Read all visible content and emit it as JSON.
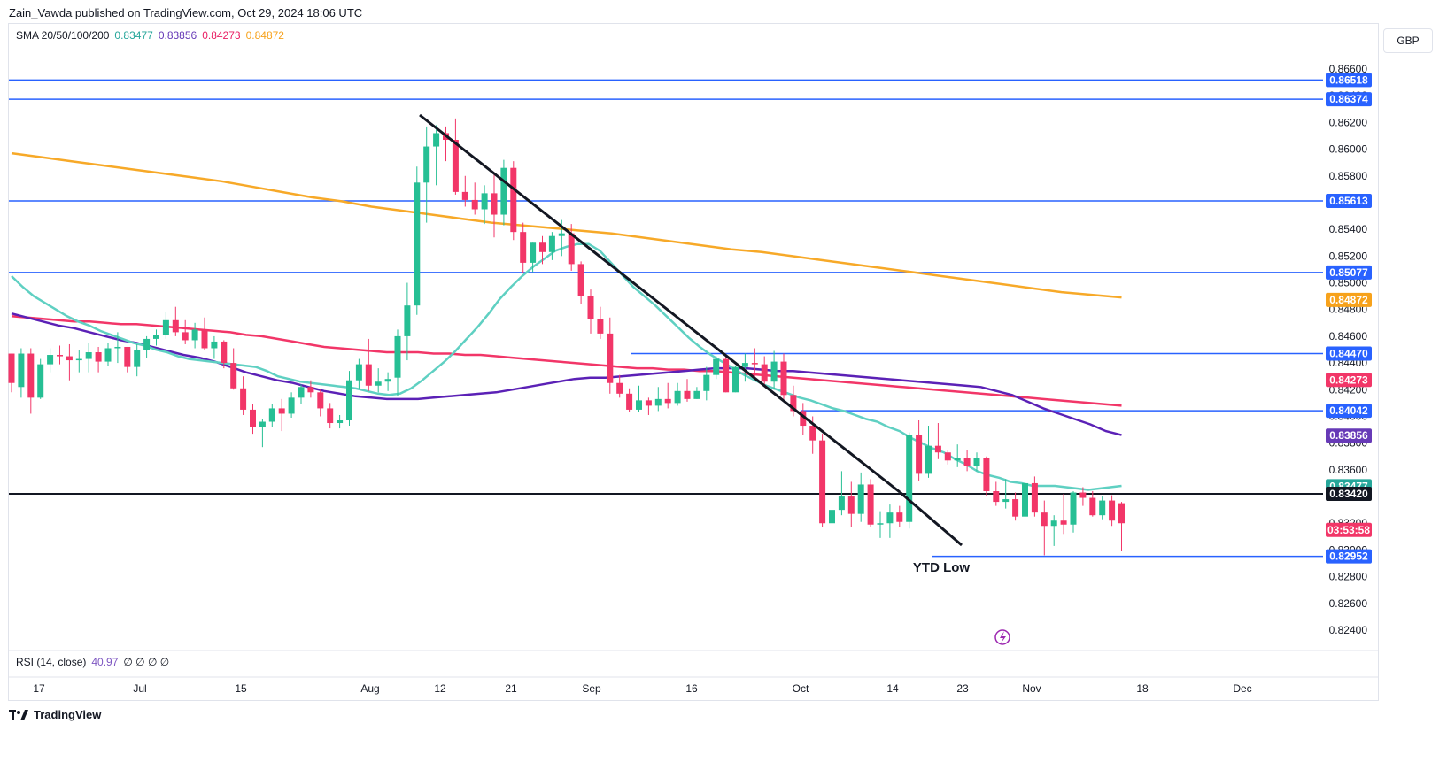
{
  "header": {
    "published": "Zain_Vawda published on TradingView.com, Oct 29, 2024 18:06 UTC"
  },
  "legend": {
    "label": "SMA 20/50/100/200",
    "values": [
      {
        "text": "0.83477",
        "color": "#26a69a"
      },
      {
        "text": "0.83856",
        "color": "#673ab7"
      },
      {
        "text": "0.84273",
        "color": "#e91e63"
      },
      {
        "text": "0.84872",
        "color": "#f7a21b"
      }
    ]
  },
  "currency": "GBP",
  "rsi": {
    "label": "RSI (14, close)",
    "value": "40.97",
    "extra": "∅ ∅ ∅ ∅"
  },
  "footer": {
    "brand": "TradingView"
  },
  "colors": {
    "up": "#26bf94",
    "down": "#f23668",
    "level": "#2962ff",
    "sma20": "#5fd0c2",
    "sma50": "#5b21b6",
    "sma100": "#f23668",
    "sma200": "#f7a928"
  },
  "chart_data": {
    "type": "candlestick",
    "ylim": [
      0.8235,
      0.8668
    ],
    "y_ticks": [
      "0.86600",
      "0.86400",
      "0.86200",
      "0.86000",
      "0.85800",
      "0.85600",
      "0.85400",
      "0.85200",
      "0.85000",
      "0.84800",
      "0.84600",
      "0.84400",
      "0.84200",
      "0.84000",
      "0.83800",
      "0.83600",
      "0.83400",
      "0.83200",
      "0.83000",
      "0.82800",
      "0.82600",
      "0.82400"
    ],
    "x_ticks": [
      "17",
      "Jul",
      "15",
      "Aug",
      "12",
      "21",
      "Sep",
      "16",
      "Oct",
      "14",
      "23",
      "Nov",
      "18",
      "Dec"
    ],
    "price_labels": [
      {
        "text": "0.86518",
        "value": 0.86518,
        "color": "#2962ff"
      },
      {
        "text": "0.86374",
        "value": 0.86374,
        "color": "#2962ff"
      },
      {
        "text": "0.85613",
        "value": 0.85613,
        "color": "#2962ff"
      },
      {
        "text": "0.85077",
        "value": 0.85077,
        "color": "#2962ff"
      },
      {
        "text": "0.84872",
        "value": 0.84872,
        "color": "#f7a21b"
      },
      {
        "text": "0.84470",
        "value": 0.8447,
        "color": "#2962ff"
      },
      {
        "text": "0.84273",
        "value": 0.84273,
        "color": "#f23668"
      },
      {
        "text": "0.84042",
        "value": 0.84042,
        "color": "#2962ff"
      },
      {
        "text": "0.83856",
        "value": 0.83856,
        "color": "#673ab7"
      },
      {
        "text": "0.83477",
        "value": 0.83477,
        "color": "#26a69a"
      },
      {
        "text": "0.83420",
        "value": 0.8342,
        "color": "#131722"
      },
      {
        "text": "03:53:58",
        "value": 0.8315,
        "color": "#f23668"
      },
      {
        "text": "0.82952",
        "value": 0.82952,
        "color": "#2962ff"
      }
    ],
    "annotation": "YTD Low",
    "candles": [
      [
        0.8447,
        0.8447,
        0.8418,
        0.8425
      ],
      [
        0.8422,
        0.8451,
        0.8414,
        0.8447
      ],
      [
        0.8447,
        0.8451,
        0.8402,
        0.8414
      ],
      [
        0.8414,
        0.8443,
        0.8413,
        0.8439
      ],
      [
        0.8439,
        0.8451,
        0.8433,
        0.8446
      ],
      [
        0.8446,
        0.8453,
        0.8439,
        0.8445
      ],
      [
        0.8445,
        0.8454,
        0.8427,
        0.8442
      ],
      [
        0.8442,
        0.845,
        0.8433,
        0.8443
      ],
      [
        0.8443,
        0.8455,
        0.8433,
        0.8448
      ],
      [
        0.8448,
        0.8452,
        0.8433,
        0.8441
      ],
      [
        0.8441,
        0.8455,
        0.8438,
        0.8451
      ],
      [
        0.8451,
        0.8463,
        0.844,
        0.8452
      ],
      [
        0.8452,
        0.8452,
        0.8433,
        0.8437
      ],
      [
        0.8437,
        0.8454,
        0.843,
        0.845
      ],
      [
        0.845,
        0.846,
        0.8444,
        0.8458
      ],
      [
        0.8458,
        0.8465,
        0.8453,
        0.8461
      ],
      [
        0.8461,
        0.8478,
        0.8458,
        0.8472
      ],
      [
        0.8472,
        0.8482,
        0.846,
        0.8463
      ],
      [
        0.8463,
        0.8472,
        0.8454,
        0.8457
      ],
      [
        0.8457,
        0.847,
        0.8451,
        0.8465
      ],
      [
        0.8465,
        0.8474,
        0.845,
        0.8451
      ],
      [
        0.8451,
        0.846,
        0.8443,
        0.8456
      ],
      [
        0.8456,
        0.8457,
        0.8436,
        0.844
      ],
      [
        0.844,
        0.8451,
        0.842,
        0.8421
      ],
      [
        0.8421,
        0.843,
        0.8401,
        0.8405
      ],
      [
        0.8405,
        0.8409,
        0.8387,
        0.8392
      ],
      [
        0.8392,
        0.8398,
        0.8377,
        0.8396
      ],
      [
        0.8396,
        0.8409,
        0.8392,
        0.8406
      ],
      [
        0.8406,
        0.8413,
        0.8389,
        0.8402
      ],
      [
        0.8402,
        0.8418,
        0.8399,
        0.8414
      ],
      [
        0.8414,
        0.8424,
        0.8409,
        0.8422
      ],
      [
        0.8422,
        0.8427,
        0.8414,
        0.8418
      ],
      [
        0.8418,
        0.842,
        0.84,
        0.8406
      ],
      [
        0.8406,
        0.841,
        0.8391,
        0.8395
      ],
      [
        0.8395,
        0.8401,
        0.8391,
        0.8397
      ],
      [
        0.8397,
        0.8434,
        0.8393,
        0.8427
      ],
      [
        0.8427,
        0.8443,
        0.8421,
        0.8439
      ],
      [
        0.8439,
        0.8458,
        0.8419,
        0.8423
      ],
      [
        0.8423,
        0.8436,
        0.8418,
        0.8426
      ],
      [
        0.8426,
        0.8433,
        0.8419,
        0.8428
      ],
      [
        0.8429,
        0.8465,
        0.8415,
        0.846
      ],
      [
        0.846,
        0.85,
        0.8442,
        0.8483
      ],
      [
        0.8483,
        0.8587,
        0.8476,
        0.8575
      ],
      [
        0.8575,
        0.8617,
        0.8545,
        0.8602
      ],
      [
        0.8602,
        0.8618,
        0.8573,
        0.8612
      ],
      [
        0.8612,
        0.8617,
        0.8591,
        0.8607
      ],
      [
        0.8607,
        0.8623,
        0.8566,
        0.8568
      ],
      [
        0.8568,
        0.858,
        0.8557,
        0.8562
      ],
      [
        0.8562,
        0.8575,
        0.8551,
        0.8555
      ],
      [
        0.8555,
        0.8573,
        0.8544,
        0.8567
      ],
      [
        0.8567,
        0.8581,
        0.8534,
        0.8551
      ],
      [
        0.8551,
        0.8592,
        0.8543,
        0.8586
      ],
      [
        0.8586,
        0.8591,
        0.8532,
        0.8538
      ],
      [
        0.8538,
        0.8545,
        0.8507,
        0.8515
      ],
      [
        0.8515,
        0.853,
        0.8508,
        0.853
      ],
      [
        0.853,
        0.8535,
        0.8514,
        0.8523
      ],
      [
        0.8523,
        0.8538,
        0.8517,
        0.8535
      ],
      [
        0.8535,
        0.8547,
        0.852,
        0.8537
      ],
      [
        0.8537,
        0.8544,
        0.8509,
        0.8514
      ],
      [
        0.8514,
        0.8516,
        0.8484,
        0.849
      ],
      [
        0.849,
        0.8495,
        0.8462,
        0.8473
      ],
      [
        0.8473,
        0.8482,
        0.8458,
        0.8462
      ],
      [
        0.8462,
        0.8474,
        0.8417,
        0.8425
      ],
      [
        0.8425,
        0.8431,
        0.8414,
        0.8417
      ],
      [
        0.8417,
        0.8421,
        0.8403,
        0.8405
      ],
      [
        0.8405,
        0.8423,
        0.8403,
        0.8412
      ],
      [
        0.8412,
        0.8414,
        0.8401,
        0.8408
      ],
      [
        0.8408,
        0.8422,
        0.8404,
        0.8413
      ],
      [
        0.8413,
        0.8425,
        0.8406,
        0.841
      ],
      [
        0.841,
        0.8425,
        0.8408,
        0.8419
      ],
      [
        0.8419,
        0.8428,
        0.8411,
        0.8413
      ],
      [
        0.8413,
        0.8422,
        0.8413,
        0.8419
      ],
      [
        0.8419,
        0.8437,
        0.8412,
        0.8431
      ],
      [
        0.8431,
        0.8445,
        0.8428,
        0.8443
      ],
      [
        0.8443,
        0.8447,
        0.8418,
        0.8418
      ],
      [
        0.8418,
        0.8438,
        0.8418,
        0.8437
      ],
      [
        0.8437,
        0.8447,
        0.8426,
        0.844
      ],
      [
        0.844,
        0.8451,
        0.8429,
        0.8439
      ],
      [
        0.8439,
        0.8445,
        0.8423,
        0.8426
      ],
      [
        0.8426,
        0.8449,
        0.842,
        0.8441
      ],
      [
        0.8441,
        0.8447,
        0.8413,
        0.8416
      ],
      [
        0.8416,
        0.8423,
        0.84,
        0.8404
      ],
      [
        0.8404,
        0.841,
        0.8386,
        0.8393
      ],
      [
        0.8393,
        0.84,
        0.8372,
        0.8382
      ],
      [
        0.8382,
        0.8387,
        0.8317,
        0.832
      ],
      [
        0.832,
        0.834,
        0.8316,
        0.833
      ],
      [
        0.833,
        0.8359,
        0.8326,
        0.834
      ],
      [
        0.834,
        0.8351,
        0.8317,
        0.8327
      ],
      [
        0.8327,
        0.8358,
        0.8321,
        0.8349
      ],
      [
        0.8349,
        0.8353,
        0.8317,
        0.8319
      ],
      [
        0.8319,
        0.8329,
        0.8309,
        0.832
      ],
      [
        0.832,
        0.8334,
        0.8309,
        0.8328
      ],
      [
        0.8328,
        0.8333,
        0.8317,
        0.8321
      ],
      [
        0.8321,
        0.8388,
        0.8316,
        0.8386
      ],
      [
        0.8386,
        0.8397,
        0.8352,
        0.8357
      ],
      [
        0.8357,
        0.8393,
        0.8354,
        0.8378
      ],
      [
        0.8378,
        0.8395,
        0.8368,
        0.8373
      ],
      [
        0.8373,
        0.8375,
        0.8364,
        0.8367
      ],
      [
        0.8367,
        0.8379,
        0.8362,
        0.8369
      ],
      [
        0.8369,
        0.8375,
        0.8359,
        0.8363
      ],
      [
        0.8363,
        0.8373,
        0.8359,
        0.8369
      ],
      [
        0.8369,
        0.837,
        0.834,
        0.8344
      ],
      [
        0.8344,
        0.8351,
        0.8333,
        0.8336
      ],
      [
        0.8336,
        0.8353,
        0.8331,
        0.8338
      ],
      [
        0.8338,
        0.8343,
        0.8322,
        0.8325
      ],
      [
        0.8325,
        0.8353,
        0.8323,
        0.835
      ],
      [
        0.835,
        0.8355,
        0.8325,
        0.8328
      ],
      [
        0.8328,
        0.8337,
        0.8296,
        0.8318
      ],
      [
        0.8318,
        0.8326,
        0.8303,
        0.8322
      ],
      [
        0.8322,
        0.8342,
        0.8312,
        0.8319
      ],
      [
        0.8319,
        0.8344,
        0.8313,
        0.8343
      ],
      [
        0.8343,
        0.8347,
        0.8333,
        0.8339
      ],
      [
        0.8339,
        0.8344,
        0.8325,
        0.8326
      ],
      [
        0.8326,
        0.834,
        0.8323,
        0.8337
      ],
      [
        0.8337,
        0.8341,
        0.8318,
        0.8322
      ],
      [
        0.8335,
        0.8336,
        0.8299,
        0.832
      ]
    ],
    "sma20": [
      0.8505,
      0.8497,
      0.849,
      0.8485,
      0.848,
      0.8475,
      0.8471,
      0.8468,
      0.8464,
      0.8461,
      0.8458,
      0.8455,
      0.8453,
      0.845,
      0.8448,
      0.8445,
      0.8443,
      0.8442,
      0.8441,
      0.844,
      0.8439,
      0.8438,
      0.8437,
      0.8434,
      0.843,
      0.8428,
      0.8426,
      0.8425,
      0.8424,
      0.8423,
      0.8422,
      0.8421,
      0.8419,
      0.8417,
      0.8416,
      0.8417,
      0.8421,
      0.8427,
      0.8434,
      0.8441,
      0.8449,
      0.8458,
      0.8467,
      0.8477,
      0.8488,
      0.8497,
      0.8505,
      0.8512,
      0.8518,
      0.8524,
      0.8527,
      0.8529,
      0.8529,
      0.8524,
      0.8515,
      0.8506,
      0.8497,
      0.849,
      0.8483,
      0.8475,
      0.8467,
      0.8459,
      0.8452,
      0.8446,
      0.8441,
      0.8436,
      0.8431,
      0.8427,
      0.8423,
      0.842,
      0.8417,
      0.8414,
      0.8412,
      0.8409,
      0.8406,
      0.8404,
      0.8401,
      0.8398,
      0.8396,
      0.8392,
      0.8389,
      0.8384,
      0.838,
      0.8376,
      0.8373,
      0.8368,
      0.8364,
      0.8359,
      0.8356,
      0.8354,
      0.8351,
      0.835,
      0.8348,
      0.8348,
      0.8348,
      0.8347,
      0.8346,
      0.8345,
      0.8346,
      0.8347,
      0.8348
    ],
    "sma20_start": 0,
    "sma50": [
      0.8477,
      0.8474,
      0.8471,
      0.8468,
      0.8466,
      0.8463,
      0.846,
      0.8457,
      0.8455,
      0.8452,
      0.8449,
      0.8446,
      0.8444,
      0.8441,
      0.8437,
      0.8433,
      0.843,
      0.8427,
      0.8425,
      0.8422,
      0.8419,
      0.8417,
      0.8415,
      0.8414,
      0.8413,
      0.8413,
      0.8413,
      0.8414,
      0.8415,
      0.8416,
      0.8417,
      0.8418,
      0.842,
      0.8422,
      0.8424,
      0.8426,
      0.8428,
      0.8429,
      0.8429,
      0.843,
      0.8431,
      0.8432,
      0.8433,
      0.8434,
      0.8435,
      0.8436,
      0.8436,
      0.8436,
      0.8435,
      0.8434,
      0.8434,
      0.8433,
      0.8432,
      0.8431,
      0.843,
      0.8429,
      0.8428,
      0.8427,
      0.8426,
      0.8425,
      0.8424,
      0.8423,
      0.8422,
      0.8419,
      0.8416,
      0.8411,
      0.8406,
      0.8402,
      0.8398,
      0.8394,
      0.8389,
      0.8386
    ],
    "sma50_start": 0,
    "sma100": [
      0.8475,
      0.8474,
      0.8473,
      0.8472,
      0.8471,
      0.8471,
      0.847,
      0.8469,
      0.8469,
      0.8468,
      0.8467,
      0.8466,
      0.8465,
      0.8464,
      0.8463,
      0.8461,
      0.846,
      0.8458,
      0.8456,
      0.8454,
      0.8452,
      0.8451,
      0.845,
      0.8449,
      0.8448,
      0.8448,
      0.8448,
      0.8447,
      0.8447,
      0.8446,
      0.8446,
      0.8445,
      0.8444,
      0.8443,
      0.8442,
      0.8441,
      0.844,
      0.8439,
      0.8438,
      0.8437,
      0.8436,
      0.8436,
      0.8435,
      0.8435,
      0.8434,
      0.8434,
      0.8433,
      0.8432,
      0.8431,
      0.843,
      0.8429,
      0.8428,
      0.8427,
      0.8426,
      0.8425,
      0.8424,
      0.8423,
      0.8422,
      0.8421,
      0.842,
      0.8419,
      0.8418,
      0.8417,
      0.8416,
      0.8415,
      0.8414,
      0.8413,
      0.8412,
      0.8411,
      0.841,
      0.8409,
      0.8408
    ],
    "sma100_start": 0,
    "sma200": [
      0.8597,
      0.8594,
      0.8591,
      0.8588,
      0.8585,
      0.8582,
      0.8579,
      0.8576,
      0.8572,
      0.8568,
      0.8564,
      0.8561,
      0.8557,
      0.8554,
      0.8551,
      0.8548,
      0.8545,
      0.8543,
      0.8541,
      0.8539,
      0.8537,
      0.8534,
      0.8531,
      0.8528,
      0.8525,
      0.8523,
      0.852,
      0.8517,
      0.8514,
      0.8511,
      0.8508,
      0.8505,
      0.8502,
      0.8499,
      0.8496,
      0.8493,
      0.8491,
      0.8489
    ],
    "sma200_start": 0
  }
}
